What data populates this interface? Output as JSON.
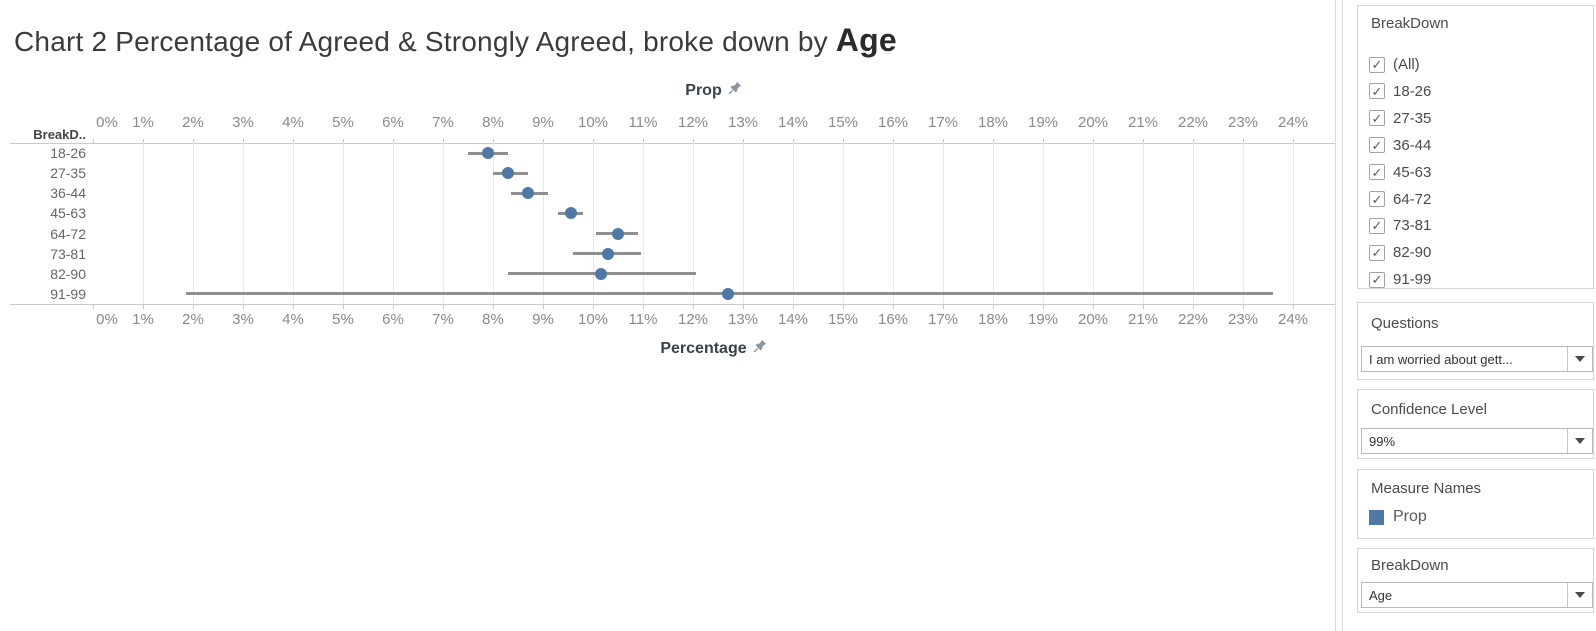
{
  "title": {
    "prefix": "Chart 2 Percentage of Agreed & Strongly Agreed, broke down by ",
    "emphasis": "Age"
  },
  "chart_data": {
    "type": "scatter",
    "subtype": "dot_with_confidence_interval",
    "title": "Chart 2 Percentage of Agreed & Strongly Agreed, broke down by Age",
    "top_axis_label": "Prop",
    "bottom_axis_label": "Percentage",
    "row_header": "BreakD..",
    "categories": [
      "18-26",
      "27-35",
      "36-44",
      "45-63",
      "64-72",
      "73-81",
      "82-90",
      "91-99"
    ],
    "series": [
      {
        "name": "Prop",
        "values": [
          7.9,
          8.3,
          8.7,
          9.55,
          10.5,
          10.3,
          10.15,
          12.7
        ],
        "ci_low": [
          7.5,
          8.0,
          8.35,
          9.3,
          10.05,
          9.6,
          8.3,
          1.85
        ],
        "ci_high": [
          8.3,
          8.7,
          9.1,
          9.8,
          10.9,
          10.95,
          12.05,
          23.6
        ]
      }
    ],
    "x_tick_labels": [
      "0%",
      "1%",
      "2%",
      "3%",
      "4%",
      "5%",
      "6%",
      "7%",
      "8%",
      "9%",
      "10%",
      "11%",
      "12%",
      "13%",
      "14%",
      "15%",
      "16%",
      "17%",
      "18%",
      "19%",
      "20%",
      "21%",
      "22%",
      "23%",
      "24%"
    ],
    "xlim": [
      0,
      24.85
    ],
    "grid": "vertical gridlines every 1%, light gray",
    "legend_position": "right panel (Measure Names)"
  },
  "sidebar": {
    "breakdown_filter": {
      "title": "BreakDown",
      "items": [
        {
          "label": "(All)",
          "checked": true
        },
        {
          "label": "18-26",
          "checked": true
        },
        {
          "label": "27-35",
          "checked": true
        },
        {
          "label": "36-44",
          "checked": true
        },
        {
          "label": "45-63",
          "checked": true
        },
        {
          "label": "64-72",
          "checked": true
        },
        {
          "label": "73-81",
          "checked": true
        },
        {
          "label": "82-90",
          "checked": true
        },
        {
          "label": "91-99",
          "checked": true
        }
      ],
      "checkmark_glyph": "✓"
    },
    "questions": {
      "title": "Questions",
      "value": "I am worried about gett..."
    },
    "confidence": {
      "title": "Confidence Level",
      "value": "99%"
    },
    "measure_names": {
      "title": "Measure Names",
      "legend": [
        {
          "label": "Prop",
          "color": "#4e79a7"
        }
      ]
    },
    "breakdown_param": {
      "title": "BreakDown",
      "value": "Age"
    }
  },
  "colors": {
    "dot": "#4e79a7",
    "ci_bar": "#8f8f8f",
    "gridline": "#e9e9e9",
    "plot_border": "#c9c9c9",
    "tick_label": "#8a8a8a",
    "axis_header": "#39424b"
  }
}
